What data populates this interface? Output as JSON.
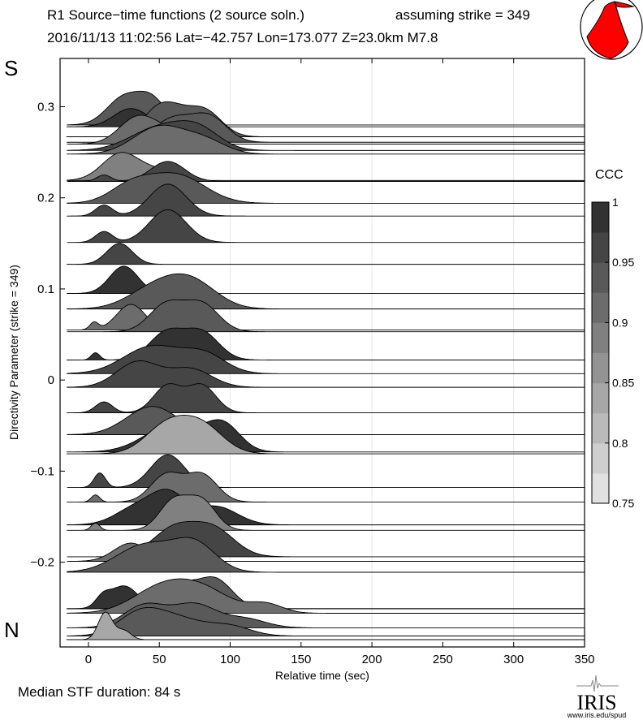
{
  "header": {
    "title": "R1 Source−time functions (2 source soln.)",
    "strike_note": "assuming strike = 349",
    "event_line": "2016/11/13 11:02:56  Lat=−42.757 Lon=173.077  Z=23.0km  M7.8"
  },
  "footer": {
    "median": "Median STF duration: 84 s",
    "logo_text": "IRIS",
    "logo_url": "www.iris.edu/spud"
  },
  "colors": {
    "beachball": "#ff0000",
    "gridline": "#e6e6e6"
  },
  "chart_data": {
    "type": "area",
    "title": "R1 Source−time functions (2 source soln.)",
    "xlabel": "Relative time (sec)",
    "ylabel": "Directivity Parameter (strike = 349)",
    "top_label": "S",
    "bottom_label": "N",
    "xlim": [
      -20,
      350
    ],
    "ylim": [
      -0.293,
      0.353
    ],
    "xticks": [
      0,
      50,
      100,
      150,
      200,
      250,
      300,
      350
    ],
    "xtick_labels": [
      "0",
      "50",
      "100",
      "150",
      "200",
      "250",
      "300",
      "350"
    ],
    "xgrid": [
      100,
      200,
      300
    ],
    "yticks": [
      0.3,
      0.2,
      0.1,
      0,
      -0.1,
      -0.2
    ],
    "ytick_labels": [
      "0.3",
      "0.2",
      "0.1",
      "0",
      "−0.1",
      "−0.2"
    ],
    "colorbar": {
      "label": "CCC",
      "range": [
        0.75,
        1
      ],
      "ticks": [
        1,
        0.95,
        0.9,
        0.85,
        0.8,
        0.75
      ],
      "tick_labels": [
        "1",
        "0.95",
        "0.9",
        "0.85",
        "0.8",
        "0.75"
      ],
      "bins": 10
    },
    "traces": [
      {
        "d": 0.28,
        "ccc": 0.93,
        "pulses": [
          [
            25,
            12,
            0.03
          ],
          [
            45,
            10,
            0.026
          ]
        ]
      },
      {
        "d": 0.278,
        "ccc": 0.99,
        "pulses": [
          [
            30,
            12,
            0.02
          ]
        ]
      },
      {
        "d": 0.267,
        "ccc": 0.93,
        "pulses": [
          [
            45,
            10,
            0.015
          ],
          [
            58,
            12,
            0.028
          ],
          [
            82,
            12,
            0.028
          ]
        ]
      },
      {
        "d": 0.261,
        "ccc": 0.93,
        "pulses": [
          [
            60,
            14,
            0.026
          ],
          [
            86,
            12,
            0.026
          ]
        ]
      },
      {
        "d": 0.259,
        "ccc": 0.91,
        "pulses": [
          [
            35,
            13,
            0.03
          ],
          [
            55,
            10,
            0.01
          ]
        ]
      },
      {
        "d": 0.252,
        "ccc": 0.96,
        "pulses": [
          [
            50,
            20,
            0.025
          ],
          [
            78,
            15,
            0.02
          ]
        ]
      },
      {
        "d": 0.248,
        "ccc": 0.92,
        "pulses": [
          [
            50,
            18,
            0.03
          ],
          [
            82,
            15,
            0.014
          ]
        ]
      },
      {
        "d": 0.219,
        "ccc": 0.88,
        "pulses": [
          [
            23,
            13,
            0.03
          ],
          [
            50,
            12,
            0.01
          ]
        ]
      },
      {
        "d": 0.218,
        "ccc": 0.97,
        "pulses": [
          [
            11,
            5,
            0.007
          ],
          [
            56,
            12,
            0.022
          ]
        ]
      },
      {
        "d": 0.194,
        "ccc": 0.94,
        "pulses": [
          [
            30,
            15,
            0.018
          ],
          [
            62,
            20,
            0.031
          ]
        ]
      },
      {
        "d": 0.18,
        "ccc": 0.96,
        "pulses": [
          [
            11,
            6,
            0.012
          ],
          [
            56,
            13,
            0.035
          ]
        ]
      },
      {
        "d": 0.151,
        "ccc": 0.97,
        "pulses": [
          [
            11,
            6,
            0.012
          ],
          [
            56,
            13,
            0.036
          ]
        ]
      },
      {
        "d": 0.127,
        "ccc": 0.96,
        "pulses": [
          [
            22,
            9,
            0.023
          ]
        ]
      },
      {
        "d": 0.095,
        "ccc": 0.98,
        "pulses": [
          [
            25,
            10,
            0.03
          ]
        ]
      },
      {
        "d": 0.078,
        "ccc": 0.93,
        "pulses": [
          [
            45,
            18,
            0.02
          ],
          [
            72,
            18,
            0.03
          ]
        ]
      },
      {
        "d": 0.055,
        "ccc": 0.9,
        "pulses": [
          [
            4,
            3,
            0.008
          ],
          [
            30,
            10,
            0.028
          ]
        ]
      },
      {
        "d": 0.053,
        "ccc": 0.93,
        "pulses": [
          [
            55,
            12,
            0.03
          ],
          [
            80,
            12,
            0.03
          ]
        ]
      },
      {
        "d": 0.022,
        "ccc": 0.98,
        "pulses": [
          [
            5,
            3,
            0.008
          ],
          [
            55,
            12,
            0.03
          ],
          [
            80,
            12,
            0.03
          ]
        ]
      },
      {
        "d": 0.007,
        "ccc": 0.96,
        "pulses": [
          [
            45,
            20,
            0.03
          ],
          [
            82,
            15,
            0.02
          ]
        ]
      },
      {
        "d": -0.008,
        "ccc": 0.96,
        "pulses": [
          [
            35,
            15,
            0.028
          ],
          [
            72,
            15,
            0.02
          ]
        ]
      },
      {
        "d": -0.036,
        "ccc": 0.96,
        "pulses": [
          [
            11,
            6,
            0.012
          ],
          [
            56,
            10,
            0.03
          ],
          [
            80,
            10,
            0.03
          ]
        ]
      },
      {
        "d": -0.06,
        "ccc": 0.94,
        "pulses": [
          [
            45,
            18,
            0.031
          ]
        ]
      },
      {
        "d": -0.079,
        "ccc": 0.99,
        "pulses": [
          [
            60,
            20,
            0.03
          ],
          [
            95,
            12,
            0.028
          ]
        ]
      },
      {
        "d": -0.081,
        "ccc": 0.85,
        "pulses": [
          [
            55,
            15,
            0.03
          ],
          [
            80,
            15,
            0.03
          ]
        ]
      },
      {
        "d": -0.118,
        "ccc": 0.97,
        "pulses": [
          [
            8,
            4,
            0.016
          ],
          [
            56,
            12,
            0.036
          ]
        ]
      },
      {
        "d": -0.134,
        "ccc": 0.92,
        "pulses": [
          [
            5,
            3,
            0.008
          ],
          [
            55,
            11,
            0.03
          ],
          [
            80,
            11,
            0.03
          ]
        ]
      },
      {
        "d": -0.159,
        "ccc": 0.98,
        "pulses": [
          [
            35,
            15,
            0.02
          ],
          [
            57,
            12,
            0.03
          ],
          [
            90,
            15,
            0.02
          ]
        ]
      },
      {
        "d": -0.165,
        "ccc": 0.88,
        "pulses": [
          [
            5,
            3,
            0.008
          ],
          [
            60,
            10,
            0.032
          ],
          [
            80,
            10,
            0.032
          ]
        ]
      },
      {
        "d": -0.194,
        "ccc": 0.97,
        "pulses": [
          [
            60,
            15,
            0.03
          ],
          [
            88,
            15,
            0.03
          ]
        ]
      },
      {
        "d": -0.199,
        "ccc": 0.91,
        "pulses": [
          [
            30,
            12,
            0.02
          ]
        ]
      },
      {
        "d": -0.211,
        "ccc": 0.95,
        "pulses": [
          [
            40,
            20,
            0.03
          ],
          [
            75,
            15,
            0.03
          ]
        ]
      },
      {
        "d": -0.251,
        "ccc": 0.95,
        "pulses": [
          [
            60,
            15,
            0.03
          ],
          [
            90,
            12,
            0.03
          ]
        ]
      },
      {
        "d": -0.251,
        "ccc": 0.98,
        "pulses": [
          [
            10,
            5,
            0.01
          ],
          [
            25,
            10,
            0.025
          ]
        ]
      },
      {
        "d": -0.256,
        "ccc": 0.9,
        "pulses": [
          [
            50,
            20,
            0.025
          ],
          [
            80,
            20,
            0.025
          ],
          [
            125,
            12,
            0.01
          ]
        ]
      },
      {
        "d": -0.272,
        "ccc": 0.95,
        "pulses": [
          [
            40,
            15,
            0.025
          ],
          [
            75,
            15,
            0.025
          ],
          [
            110,
            15,
            0.01
          ]
        ]
      },
      {
        "d": -0.281,
        "ccc": 0.93,
        "pulses": [
          [
            35,
            15,
            0.02
          ],
          [
            60,
            20,
            0.02
          ],
          [
            100,
            15,
            0.01
          ]
        ]
      },
      {
        "d": -0.285,
        "ccc": 0.85,
        "pulses": [
          [
            12,
            5,
            0.03
          ],
          [
            25,
            5,
            0.01
          ]
        ]
      }
    ]
  }
}
